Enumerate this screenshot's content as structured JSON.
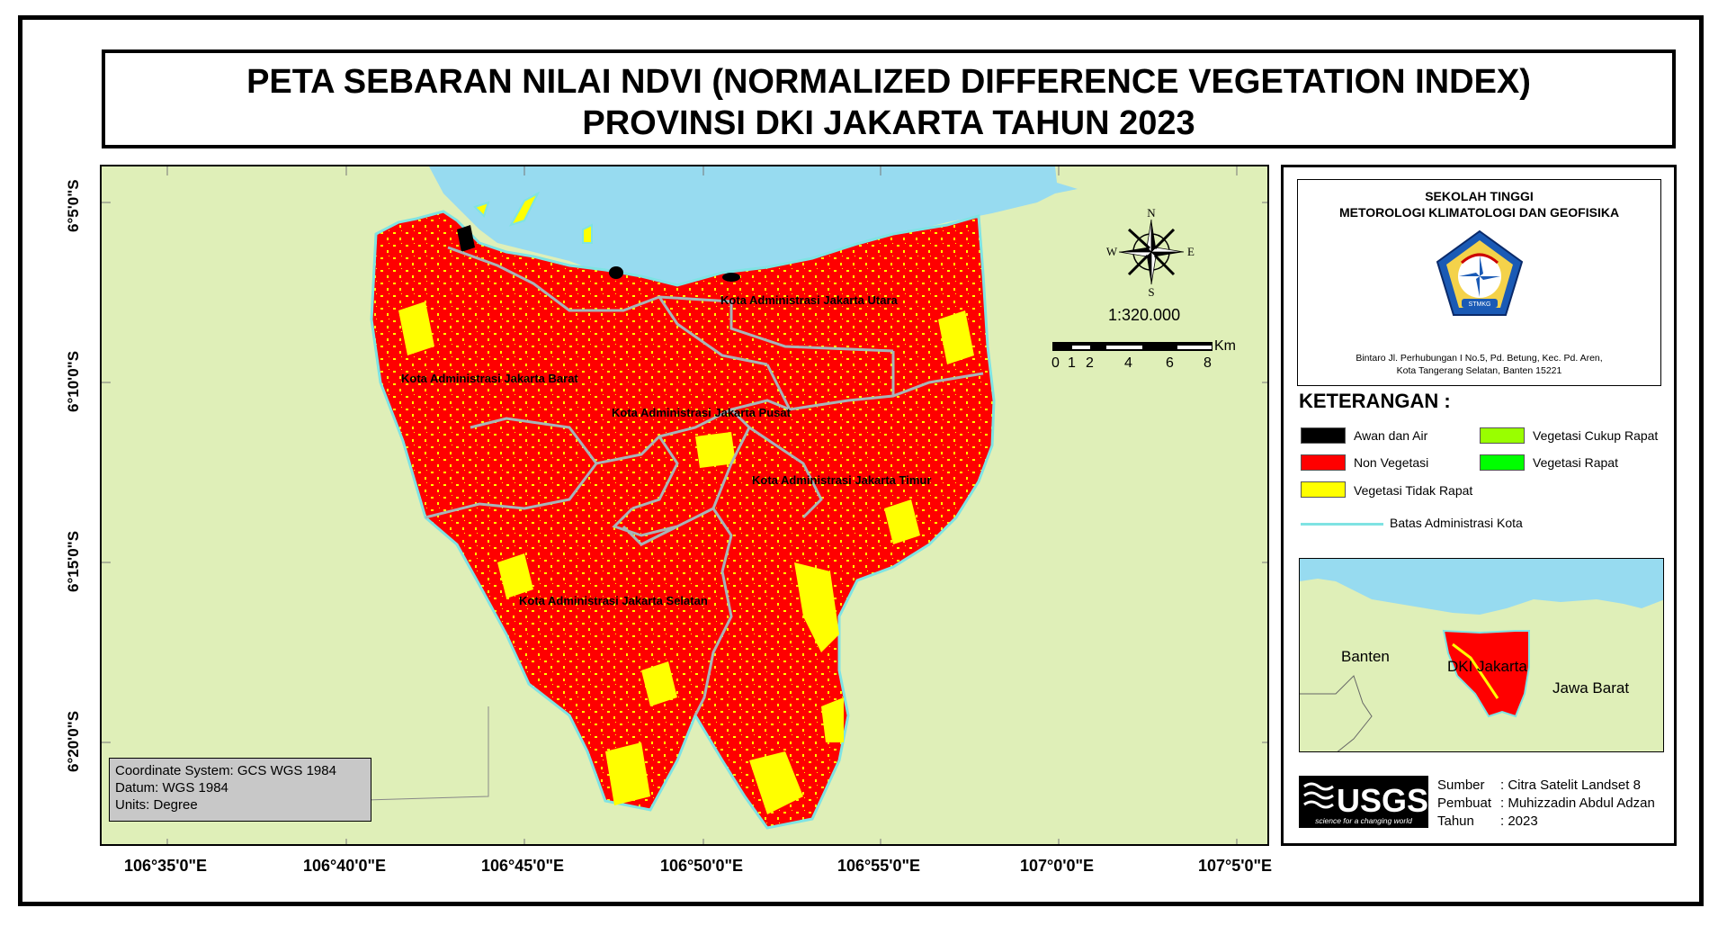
{
  "title": {
    "line1": "PETA SEBARAN NILAI NDVI (NORMALIZED DIFFERENCE VEGETATION INDEX)",
    "line2": "PROVINSI DKI JAKARTA TAHUN 2023"
  },
  "map": {
    "lat_labels": [
      "6°5'0\"S",
      "6°10'0\"S",
      "6°15'0\"S",
      "6°20'0\"S"
    ],
    "lon_labels": [
      "106°35'0\"E",
      "106°40'0\"E",
      "106°45'0\"E",
      "106°50'0\"E",
      "106°55'0\"E",
      "107°0'0\"E",
      "107°5'0\"E"
    ],
    "regions": {
      "utara": "Kota Administrasi Jakarta Utara",
      "barat": "Kota Administrasi Jakarta Barat",
      "pusat": "Kota Administrasi Jakarta Pusat",
      "timur": "Kota Administrasi Jakarta Timur",
      "selatan": "Kota Administrasi Jakarta Selatan"
    },
    "compass": {
      "n": "N",
      "s": "S",
      "e": "E",
      "w": "W"
    },
    "scale_ratio": "1:320.000",
    "scale_unit": "Km",
    "scale_ticks": [
      "0",
      "1",
      "2",
      "4",
      "6",
      "8"
    ],
    "coord_system": {
      "line1": "Coordinate System: GCS WGS 1984",
      "line2": "Datum: WGS 1984",
      "line3": "Units: Degree"
    },
    "colors": {
      "land": "#dfefb8",
      "sea": "#97dbf0",
      "non_vegetasi": "#ff0000",
      "vegetasi_tidak_rapat": "#ffff00",
      "boundary": "#a7b5b8"
    }
  },
  "institution": {
    "line1": "SEKOLAH TINGGI",
    "line2": "METOROLOGI KLIMATOLOGI DAN GEOFISIKA",
    "logo_text": "STMKG",
    "address1": "Bintaro Jl. Perhubungan I No.5, Pd. Betung, Kec. Pd. Aren,",
    "address2": "Kota Tangerang Selatan, Banten 15221"
  },
  "legend": {
    "title": "KETERANGAN :",
    "items": [
      {
        "label": "Awan dan Air",
        "color": "#000000"
      },
      {
        "label": "Non Vegetasi",
        "color": "#ff0000"
      },
      {
        "label": "Vegetasi Tidak Rapat",
        "color": "#ffff00"
      },
      {
        "label": "Vegetasi Cukup Rapat",
        "color": "#99ff00"
      },
      {
        "label": "Vegetasi Rapat",
        "color": "#00ff00"
      }
    ],
    "boundary_label": "Batas Administrasi Kota",
    "boundary_color": "#7fe3e3"
  },
  "inset": {
    "banten": "Banten",
    "dki": "DKI Jakarta",
    "jabar": "Jawa Barat"
  },
  "source": {
    "usgs_text": "USGS",
    "usgs_tagline": "science for a changing world",
    "rows": [
      {
        "key": "Sumber",
        "value": ": Citra Satelit Landset 8"
      },
      {
        "key": "Pembuat",
        "value": ": Muhizzadin Abdul Adzan"
      },
      {
        "key": "Tahun",
        "value": ": 2023"
      }
    ]
  }
}
